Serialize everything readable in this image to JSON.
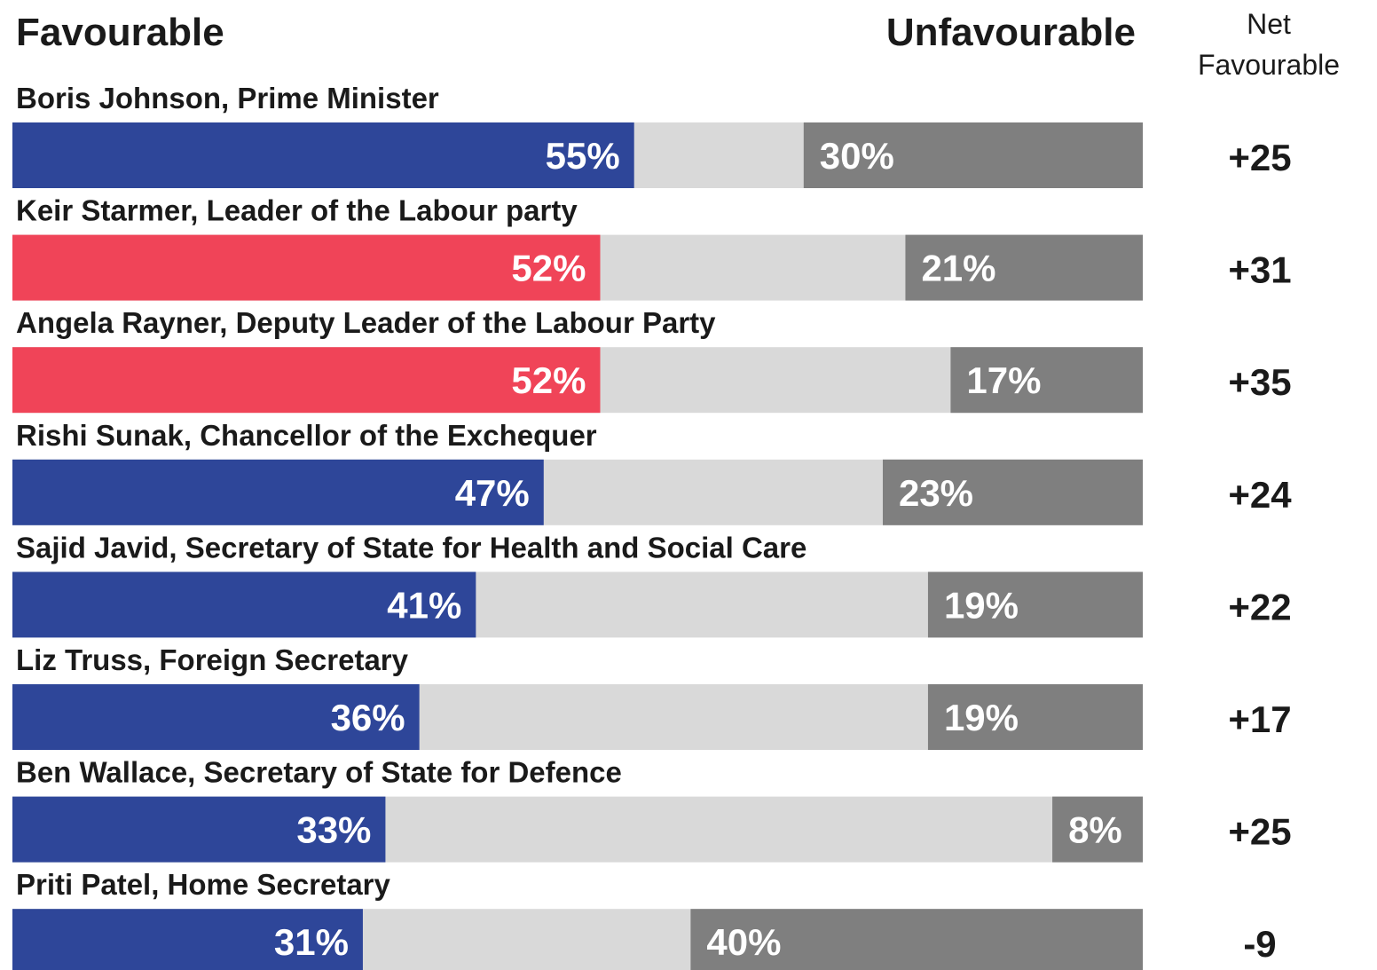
{
  "header": {
    "favourable_label": "Favourable",
    "unfavourable_label": "Unfavourable",
    "net_label_line1": "Net",
    "net_label_line2": "Favourable"
  },
  "colors": {
    "conservative": "#2e4699",
    "labour": "#f04458",
    "neutral": "#d9d9d9",
    "unfavourable": "#7f7f7f",
    "text_dark": "#1a1a1a",
    "text_light": "#ffffff"
  },
  "chart_data": {
    "type": "bar",
    "orientation": "horizontal",
    "stacked": true,
    "xlim": [
      0,
      100
    ],
    "categories": [
      "Boris Johnson, Prime Minister",
      "Keir Starmer, Leader of the Labour party",
      "Angela Rayner, Deputy Leader of the Labour Party",
      "Rishi Sunak, Chancellor of the Exchequer",
      "Sajid Javid, Secretary of State for Health and Social Care",
      "Liz Truss, Foreign Secretary",
      "Ben Wallace, Secretary of State for Defence",
      "Priti Patel, Home Secretary"
    ],
    "series": [
      {
        "name": "Favourable",
        "values": [
          55,
          52,
          52,
          47,
          41,
          36,
          33,
          31
        ],
        "labels": [
          "55%",
          "52%",
          "52%",
          "47%",
          "41%",
          "36%",
          "33%",
          "31%"
        ]
      },
      {
        "name": "Unfavourable",
        "values": [
          30,
          21,
          17,
          23,
          19,
          19,
          8,
          40
        ],
        "labels": [
          "30%",
          "21%",
          "17%",
          "23%",
          "19%",
          "19%",
          "8%",
          "40%"
        ]
      }
    ],
    "net_favourable": [
      "+25",
      "+31",
      "+35",
      "+24",
      "+22",
      "+17",
      "+25",
      "-9"
    ],
    "favourable_colors": [
      "conservative",
      "labour",
      "labour",
      "conservative",
      "conservative",
      "conservative",
      "conservative",
      "conservative"
    ]
  }
}
